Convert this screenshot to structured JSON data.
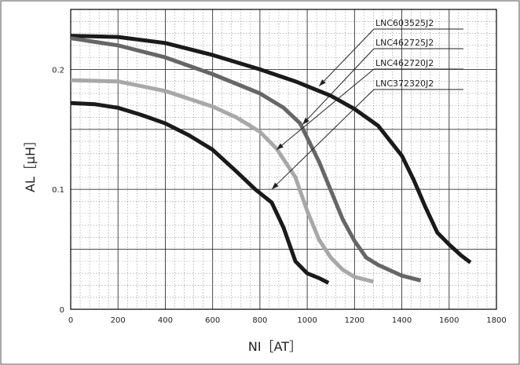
{
  "chart_data": {
    "type": "line",
    "xlabel": "NI［AT］",
    "ylabel": "AL［μH］",
    "xlim": [
      0,
      1800
    ],
    "ylim": [
      0,
      0.25
    ],
    "x_ticks": [
      "0",
      "200",
      "400",
      "600",
      "800",
      "1000",
      "1200",
      "1400",
      "1600",
      "1800"
    ],
    "y_ticks": [
      "0",
      "0.1",
      "0.2"
    ],
    "grid": true,
    "series": [
      {
        "name": "LNC603525J2",
        "color": "#1a1a1a",
        "x": [
          0,
          200,
          400,
          600,
          800,
          950,
          1100,
          1200,
          1300,
          1400,
          1450,
          1500,
          1550,
          1600,
          1650,
          1690
        ],
        "y": [
          0.228,
          0.227,
          0.222,
          0.212,
          0.2,
          0.19,
          0.178,
          0.167,
          0.153,
          0.128,
          0.108,
          0.085,
          0.064,
          0.054,
          0.045,
          0.039
        ]
      },
      {
        "name": "LNC462725J2",
        "color": "#666666",
        "x": [
          0,
          200,
          400,
          600,
          800,
          900,
          970,
          1050,
          1100,
          1150,
          1200,
          1250,
          1300,
          1400,
          1480
        ],
        "y": [
          0.226,
          0.22,
          0.21,
          0.196,
          0.18,
          0.168,
          0.155,
          0.123,
          0.099,
          0.075,
          0.057,
          0.043,
          0.037,
          0.028,
          0.024
        ]
      },
      {
        "name": "LNC462720J2",
        "color": "#a8a8a8",
        "x": [
          0,
          200,
          400,
          600,
          700,
          800,
          870,
          950,
          1000,
          1050,
          1100,
          1150,
          1200,
          1280
        ],
        "y": [
          0.191,
          0.19,
          0.182,
          0.169,
          0.16,
          0.148,
          0.134,
          0.11,
          0.082,
          0.058,
          0.043,
          0.033,
          0.027,
          0.023
        ]
      },
      {
        "name": "LNC372320J2",
        "color": "#1a1a1a",
        "x": [
          0,
          100,
          200,
          300,
          400,
          500,
          600,
          700,
          780,
          850,
          900,
          950,
          1000,
          1050,
          1090
        ],
        "y": [
          0.172,
          0.171,
          0.168,
          0.162,
          0.155,
          0.145,
          0.133,
          0.115,
          0.1,
          0.089,
          0.068,
          0.04,
          0.03,
          0.026,
          0.022
        ]
      }
    ],
    "annotations": [
      {
        "series": "LNC603525J2",
        "x": 1050,
        "y": 0.186
      },
      {
        "series": "LNC462725J2",
        "x": 980,
        "y": 0.154
      },
      {
        "series": "LNC462720J2",
        "x": 870,
        "y": 0.133
      },
      {
        "series": "LNC372320J2",
        "x": 850,
        "y": 0.1
      }
    ]
  }
}
